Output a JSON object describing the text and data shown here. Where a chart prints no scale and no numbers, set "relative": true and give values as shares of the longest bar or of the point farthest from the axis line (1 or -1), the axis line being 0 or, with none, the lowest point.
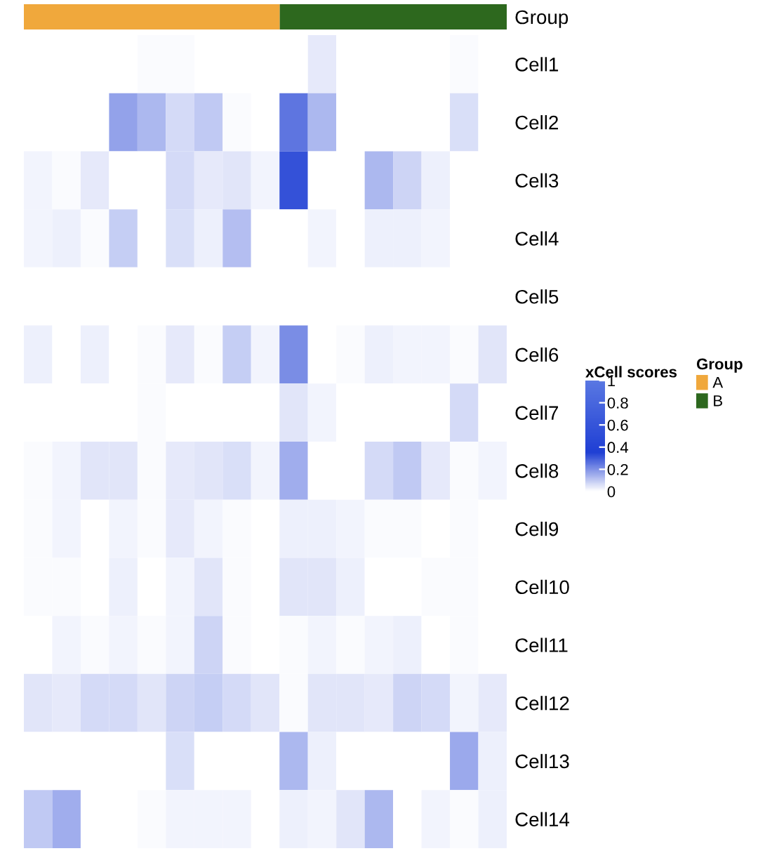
{
  "chart_data": [
    {
      "type": "bar",
      "orientation": "horizontal",
      "stacked": true,
      "relative": true,
      "categories": [
        "Group"
      ],
      "series": [
        {
          "name": "A",
          "color": "#f0a83c",
          "values": [
            0.53
          ]
        },
        {
          "name": "B",
          "color": "#2d681e",
          "values": [
            0.47
          ]
        }
      ],
      "legend_title": "Group",
      "legend": "right"
    },
    {
      "type": "heatmap",
      "clabel": "xCell scores",
      "clim": [
        0,
        1
      ],
      "cticks": [
        0,
        0.2,
        0.4,
        0.6,
        0.8,
        1
      ],
      "categories": [
        null,
        null,
        null,
        null,
        null,
        null,
        null,
        null,
        null,
        null,
        null,
        null,
        null,
        null,
        null,
        null,
        null
      ],
      "y_categories": [
        "Cell1",
        "Cell2",
        "Cell3",
        "Cell4",
        "Cell5",
        "Cell6",
        "Cell7",
        "Cell8",
        "Cell9",
        "Cell10",
        "Cell11",
        "Cell12",
        "Cell13",
        "Cell14"
      ],
      "cells": [
        [
          0,
          0,
          0,
          0,
          0.01,
          0.01,
          0,
          0,
          0,
          0,
          0.04,
          0,
          0,
          0,
          0,
          0.01,
          0
        ],
        [
          0,
          0,
          0,
          0.17,
          0.13,
          0.07,
          0.1,
          0.01,
          0,
          0.25,
          0.13,
          0,
          0,
          0,
          0,
          0.06,
          0
        ],
        [
          0.02,
          0.01,
          0.04,
          0,
          0,
          0.07,
          0.04,
          0.05,
          0.02,
          0.32,
          0,
          0,
          0.13,
          0.08,
          0.03,
          0,
          0
        ],
        [
          0.02,
          0.03,
          0.01,
          0.09,
          0,
          0.06,
          0.03,
          0.12,
          0,
          0,
          0.02,
          0,
          0.03,
          0.03,
          0.02,
          0,
          0
        ],
        [
          0,
          0,
          0,
          0,
          0,
          0,
          0,
          0,
          0,
          0,
          0,
          0,
          0,
          0,
          0,
          0,
          0
        ],
        [
          0.03,
          0,
          0.03,
          0,
          0.01,
          0.04,
          0.01,
          0.09,
          0.02,
          0.21,
          0,
          0.01,
          0.03,
          0.02,
          0.02,
          0.01,
          0.05
        ],
        [
          0,
          0,
          0,
          0,
          0.01,
          0,
          0,
          0,
          0,
          0.05,
          0.02,
          0,
          0,
          0,
          0,
          0.07,
          0
        ],
        [
          0.01,
          0.02,
          0.05,
          0.05,
          0.01,
          0.04,
          0.05,
          0.06,
          0.02,
          0.15,
          0,
          0,
          0.07,
          0.1,
          0.04,
          0.01,
          0.02
        ],
        [
          0.01,
          0.02,
          0,
          0.02,
          0.01,
          0.04,
          0.02,
          0.01,
          0,
          0.03,
          0.03,
          0.02,
          0.01,
          0.01,
          0,
          0.01,
          0
        ],
        [
          0.01,
          0.01,
          0,
          0.03,
          0,
          0.02,
          0.05,
          0.01,
          0,
          0.05,
          0.05,
          0.03,
          0,
          0,
          0.01,
          0.01,
          0
        ],
        [
          0,
          0.02,
          0.01,
          0.02,
          0.01,
          0.02,
          0.08,
          0.01,
          0,
          0.01,
          0.02,
          0.01,
          0.02,
          0.03,
          0,
          0.01,
          0
        ],
        [
          0.05,
          0.04,
          0.07,
          0.07,
          0.05,
          0.08,
          0.09,
          0.07,
          0.05,
          0.01,
          0.05,
          0.05,
          0.04,
          0.08,
          0.07,
          0.02,
          0.04
        ],
        [
          0,
          0,
          0,
          0,
          0,
          0.06,
          0,
          0,
          0,
          0.13,
          0.03,
          0,
          0,
          0,
          0,
          0.16,
          0.03
        ],
        [
          0.1,
          0.15,
          0,
          0,
          0.01,
          0.02,
          0.02,
          0.02,
          0,
          0.03,
          0.02,
          0.05,
          0.13,
          0,
          0.02,
          0.01,
          0.03
        ]
      ]
    }
  ]
}
